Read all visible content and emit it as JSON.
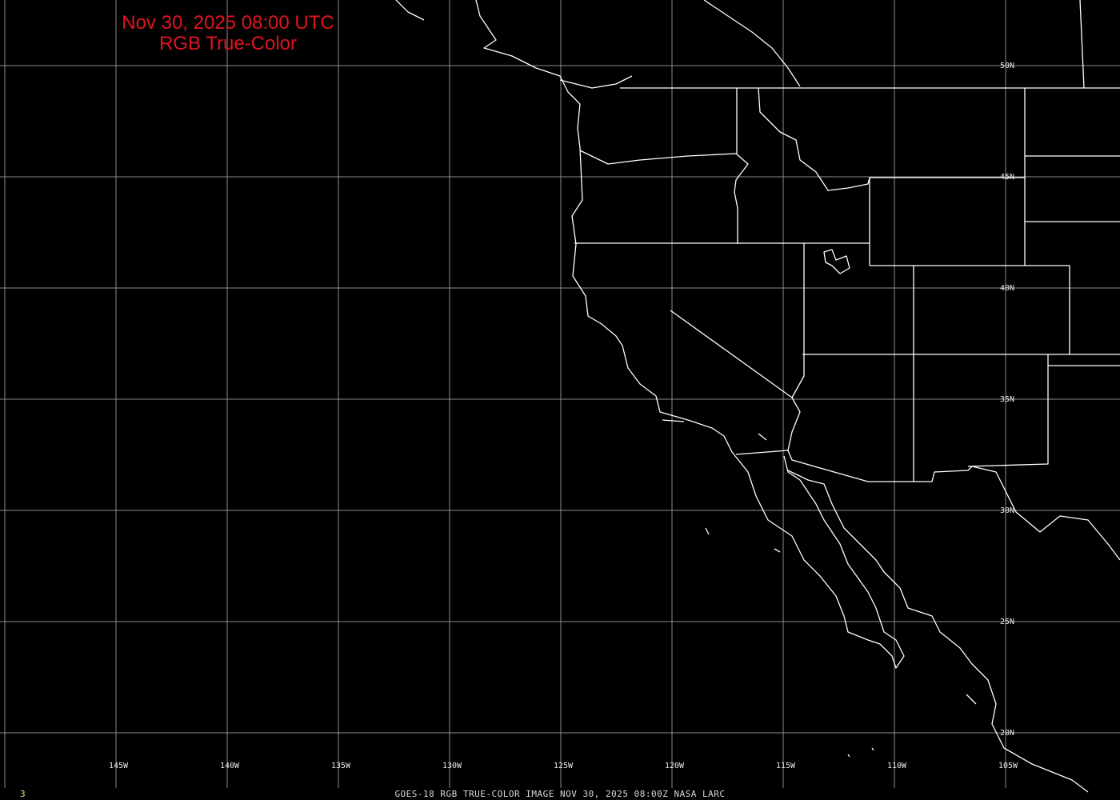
{
  "title": {
    "line1": "Nov 30, 2025 08:00 UTC",
    "line2": "RGB True-Color"
  },
  "footer": "GOES-18 RGB TRUE-COLOR IMAGE   NOV 30, 2025 08:00Z    NASA LARC",
  "frame_number": "3",
  "colors": {
    "title": "#e0141e",
    "grid": "#8c8c8c",
    "borders": "#ffffff",
    "background": "#000000",
    "frame_number": "#e8e070"
  },
  "grid": {
    "longitudes": [
      -145,
      -140,
      -135,
      -130,
      -125,
      -120,
      -115,
      -110,
      -105
    ],
    "latitudes": [
      50,
      45,
      40,
      35,
      30,
      25,
      20
    ],
    "lon_labels": [
      "145W",
      "140W",
      "135W",
      "130W",
      "125W",
      "120W",
      "115W",
      "110W",
      "105W"
    ],
    "lat_labels": [
      "50N",
      "45N",
      "40N",
      "35N",
      "30N",
      "25N",
      "20N"
    ]
  }
}
